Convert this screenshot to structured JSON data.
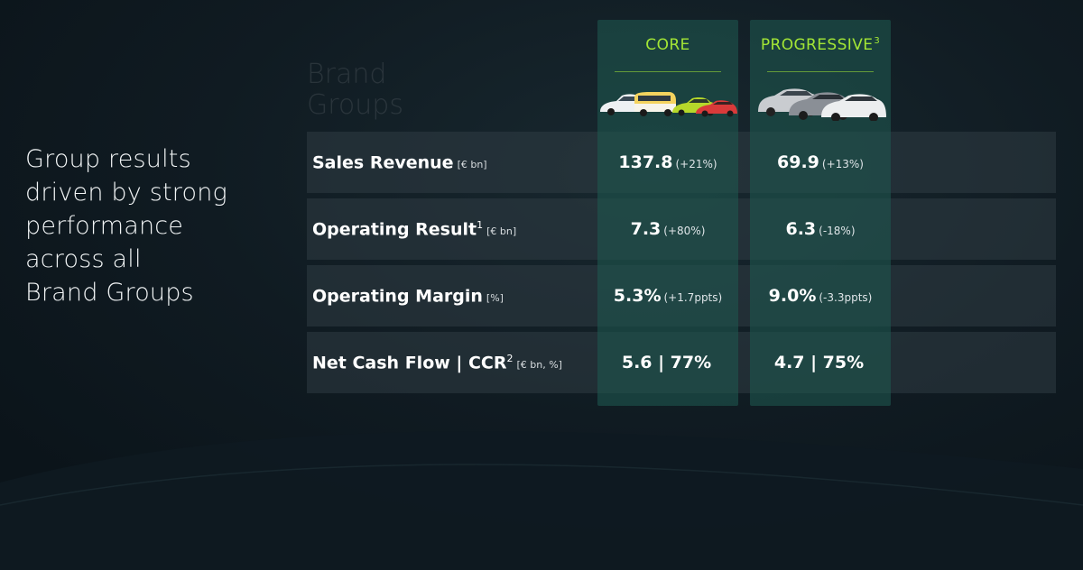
{
  "headline": [
    "Group results",
    "driven by strong",
    "performance",
    "across all",
    "Brand Groups"
  ],
  "section_label": [
    "Brand",
    "Groups"
  ],
  "columns": {
    "core": {
      "title": "CORE"
    },
    "progressive": {
      "title": "PROGRESSIVE",
      "footnote": "3"
    }
  },
  "rows": [
    {
      "label": "Sales Revenue",
      "footnote": "",
      "unit": "[€ bn]",
      "core": {
        "value": "137.8",
        "change": "(+21%)"
      },
      "progressive": {
        "value": "69.9",
        "change": "(+13%)"
      }
    },
    {
      "label": "Operating Result",
      "footnote": "1",
      "unit": "[€ bn]",
      "core": {
        "value": "7.3",
        "change": "(+80%)"
      },
      "progressive": {
        "value": "6.3",
        "change": "(-18%)"
      }
    },
    {
      "label": "Operating Margin",
      "footnote": "",
      "unit": "[%]",
      "core": {
        "value": "5.3%",
        "change": "(+1.7ppts)"
      },
      "progressive": {
        "value": "9.0%",
        "change": "(-3.3ppts)"
      }
    },
    {
      "label": "Net Cash Flow | CCR",
      "footnote": "2",
      "unit": "[€ bn, %]",
      "core": {
        "value": "5.6 | 77%",
        "change": ""
      },
      "progressive": {
        "value": "4.7 | 75%",
        "change": ""
      }
    }
  ],
  "colors": {
    "accent": "#a3e635",
    "column_bg": "#1e564e",
    "row_bg": "#303c44"
  },
  "icons": {
    "core_cars": "core-brand-cars-image",
    "progressive_cars": "progressive-brand-cars-image"
  }
}
